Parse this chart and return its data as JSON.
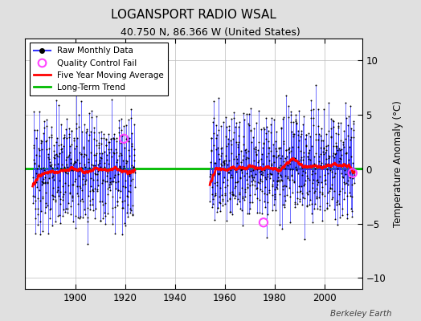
{
  "title": "LOGANSPORT RADIO WSAL",
  "subtitle": "40.750 N, 86.366 W (United States)",
  "ylabel": "Temperature Anomaly (°C)",
  "credit": "Berkeley Earth",
  "xlim": [
    1880,
    2015
  ],
  "ylim": [
    -11,
    12
  ],
  "yticks": [
    -10,
    -5,
    0,
    5,
    10
  ],
  "xticks": [
    1900,
    1920,
    1940,
    1960,
    1980,
    2000
  ],
  "gap_start": 1924,
  "gap_end": 1954,
  "segment1_start": 1883,
  "segment1_end": 1924,
  "segment2_start": 1954,
  "segment2_end": 2012,
  "long_term_trend_y": 0.05,
  "background_color": "#e0e0e0",
  "plot_bg_color": "#ffffff",
  "raw_line_color": "#3333ff",
  "raw_dot_color": "#000000",
  "moving_avg_color": "#ff0000",
  "trend_color": "#00bb00",
  "qc_fail_color": "#ff44ff",
  "qc_fail_points": [
    [
      1919.5,
      2.8
    ],
    [
      1975.5,
      -4.9
    ],
    [
      2011.2,
      -0.35
    ]
  ],
  "seed": 42
}
